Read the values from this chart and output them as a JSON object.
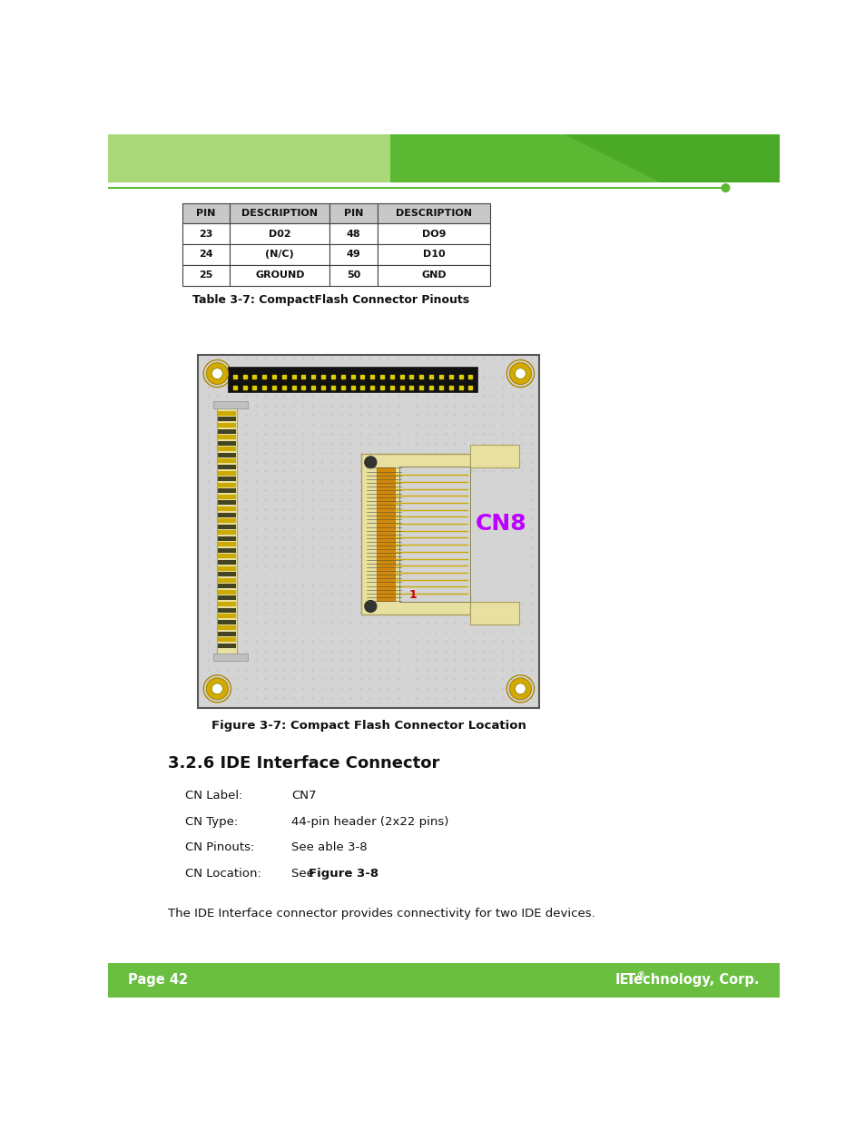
{
  "page_width": 9.54,
  "page_height": 12.35,
  "bg_color": "#ffffff",
  "footer_bg": "#6abf40",
  "footer_text_left": "Page 42",
  "table_caption": "Table 3-7: CompactFlash Connector Pinouts",
  "table_headers": [
    "PIN",
    "DESCRIPTION",
    "PIN",
    "DESCRIPTION"
  ],
  "table_rows": [
    [
      "23",
      "D02",
      "48",
      "DO9"
    ],
    [
      "24",
      "(N/C)",
      "49",
      "D10"
    ],
    [
      "25",
      "GROUND",
      "50",
      "GND"
    ]
  ],
  "table_header_bg": "#c8c8c8",
  "figure_caption": "Figure 3-7: Compact Flash Connector Location",
  "section_title": "3.2.6 IDE Interface Connector",
  "cn_label": "CN Label:",
  "cn_label_val": "CN7",
  "cn_type": "CN Type:",
  "cn_type_val": "44-pin header (2x22 pins)",
  "cn_pinouts": "CN Pinouts:",
  "cn_pinouts_val": "See able 3-8",
  "cn_location": "CN Location:",
  "cn_location_val": "See ",
  "cn_location_bold": "Figure 3-8",
  "body_text": "The IDE Interface connector provides connectivity for two IDE devices.",
  "board_bg": "#d4d4d4",
  "connector_housing": "#e8e0a0",
  "screw_color": "#d4aa00",
  "cn8_color": "#bb00ff",
  "pin1_color": "#cc0000",
  "header_light": "#a8d878",
  "header_mid": "#5cb832",
  "header_dark": "#4aaa28",
  "header_line": "#5cb832"
}
